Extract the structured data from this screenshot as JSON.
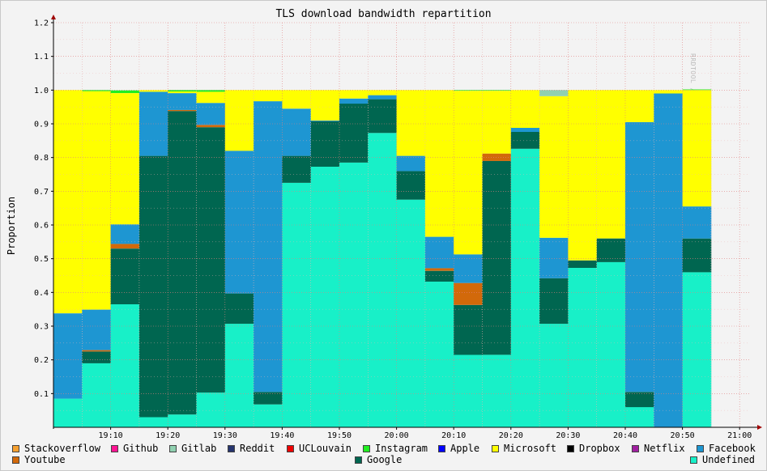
{
  "watermark": "RRDTOOL / TOBI OETIKER",
  "chart_data": {
    "type": "area",
    "stacked": true,
    "title": "TLS download bandwidth repartition",
    "xlabel": "",
    "ylabel": "Proportion",
    "ylim": [
      0,
      1.2
    ],
    "y_ticks": [
      "0.1",
      "0.2",
      "0.3",
      "0.4",
      "0.5",
      "0.6",
      "0.7",
      "0.8",
      "0.9",
      "1.0",
      "1.1",
      "1.2"
    ],
    "x_ticks": [
      "19:10",
      "19:20",
      "19:30",
      "19:40",
      "19:50",
      "20:00",
      "20:10",
      "20:20",
      "20:30",
      "20:40",
      "20:50",
      "21:00"
    ],
    "x": [
      "19:00",
      "19:05",
      "19:10",
      "19:15",
      "19:20",
      "19:25",
      "19:30",
      "19:35",
      "19:40",
      "19:45",
      "19:50",
      "19:55",
      "20:00",
      "20:05",
      "20:10",
      "20:15",
      "20:20",
      "20:25",
      "20:30",
      "20:35",
      "20:40",
      "20:45",
      "20:50"
    ],
    "grid": true,
    "legend_position": "bottom",
    "legend": [
      {
        "name": "Stackoverflow",
        "color": "#f5a030"
      },
      {
        "name": "Github",
        "color": "#ff1493"
      },
      {
        "name": "Gitlab",
        "color": "#90d0b0"
      },
      {
        "name": "Reddit",
        "color": "#26346e"
      },
      {
        "name": "UCLouvain",
        "color": "#ee0000"
      },
      {
        "name": "Instagram",
        "color": "#22ee22"
      },
      {
        "name": "Apple",
        "color": "#0000ff"
      },
      {
        "name": "Microsoft",
        "color": "#ffff00"
      },
      {
        "name": "Dropbox",
        "color": "#000000"
      },
      {
        "name": "Netflix",
        "color": "#a020a0"
      },
      {
        "name": "Facebook",
        "color": "#1e96d2"
      },
      {
        "name": "Youtube",
        "color": "#d2690a"
      },
      {
        "name": "Google",
        "color": "#006650"
      },
      {
        "name": "Undefined",
        "color": "#18f0c8"
      }
    ],
    "series": [
      {
        "name": "Undefined",
        "color": "#18f0c8",
        "values": [
          0.085,
          0.19,
          0.365,
          0.03,
          0.038,
          0.103,
          0.307,
          0.068,
          0.725,
          0.773,
          0.785,
          0.873,
          0.675,
          0.432,
          0.215,
          0.215,
          0.826,
          0.307,
          0.473,
          0.49,
          0.06,
          0.0,
          0.46
        ]
      },
      {
        "name": "Google",
        "color": "#006650",
        "values": [
          0.0,
          0.035,
          0.165,
          0.775,
          0.9,
          0.787,
          0.09,
          0.037,
          0.08,
          0.135,
          0.175,
          0.1,
          0.085,
          0.032,
          0.148,
          0.575,
          0.05,
          0.135,
          0.022,
          0.07,
          0.045,
          0.0,
          0.1
        ]
      },
      {
        "name": "Youtube",
        "color": "#d2690a",
        "values": [
          0.0,
          0.004,
          0.014,
          0.0,
          0.003,
          0.007,
          0.0,
          0.0,
          0.0,
          0.0,
          0.0,
          0.0,
          0.0,
          0.008,
          0.065,
          0.022,
          0.0,
          0.0,
          0.0,
          0.0,
          0.0,
          0.0,
          0.0
        ]
      },
      {
        "name": "Facebook",
        "color": "#1e96d2",
        "values": [
          0.253,
          0.12,
          0.058,
          0.19,
          0.05,
          0.065,
          0.423,
          0.862,
          0.14,
          0.002,
          0.015,
          0.012,
          0.045,
          0.093,
          0.085,
          0.0,
          0.012,
          0.12,
          0.0,
          0.0,
          0.8,
          0.99,
          0.095
        ]
      },
      {
        "name": "Microsoft",
        "color": "#ffff00",
        "values": [
          0.662,
          0.648,
          0.389,
          0.005,
          0.005,
          0.033,
          0.18,
          0.033,
          0.055,
          0.09,
          0.025,
          0.015,
          0.195,
          0.435,
          0.485,
          0.186,
          0.112,
          0.42,
          0.505,
          0.44,
          0.095,
          0.01,
          0.345
        ]
      },
      {
        "name": "Gitlab",
        "color": "#90d0b0",
        "values": [
          0,
          0,
          0,
          0,
          0,
          0,
          0,
          0,
          0,
          0,
          0,
          0,
          0,
          0,
          0,
          0,
          0,
          0.018,
          0,
          0,
          0,
          0,
          0
        ]
      },
      {
        "name": "Instagram",
        "color": "#22ee22",
        "values": [
          0.0,
          0.003,
          0.008,
          0.0,
          0.004,
          0.005,
          0.0,
          0.0,
          0.0,
          0.0,
          0.0,
          0.0,
          0.0,
          0.0,
          0.002,
          0.002,
          0.0,
          0.0,
          0.0,
          0.0,
          0.0,
          0.0,
          0.002
        ]
      }
    ]
  }
}
